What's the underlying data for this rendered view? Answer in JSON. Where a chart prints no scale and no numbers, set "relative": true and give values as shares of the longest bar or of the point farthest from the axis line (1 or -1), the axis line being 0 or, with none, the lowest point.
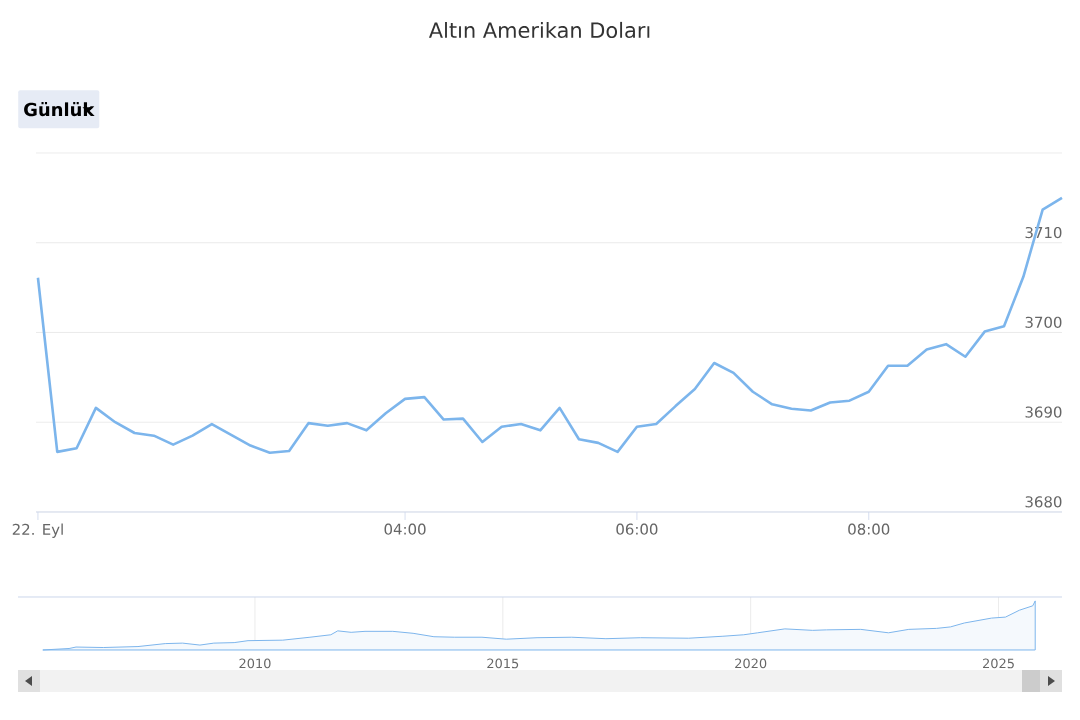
{
  "chart_data": [
    {
      "type": "line",
      "title": "Altın Amerikan Doları",
      "annotations": [
        "Günlük"
      ],
      "categories": [
        "22. Eyl",
        null,
        null,
        null,
        null,
        null,
        null,
        null,
        null,
        null,
        null,
        null,
        null,
        null,
        null,
        null,
        null,
        null,
        null,
        "04:00",
        null,
        null,
        null,
        null,
        null,
        null,
        null,
        null,
        null,
        null,
        null,
        "06:00",
        null,
        null,
        null,
        null,
        null,
        null,
        null,
        null,
        null,
        null,
        null,
        "08:00",
        null,
        null,
        null,
        null,
        null,
        null,
        null,
        null,
        null,
        null
      ],
      "values": [
        3706.1,
        3686.7,
        3687.1,
        3691.6,
        3690.0,
        3688.8,
        3688.5,
        3687.5,
        3688.5,
        3689.8,
        3688.6,
        3687.4,
        3686.6,
        3686.8,
        3689.9,
        3689.6,
        3689.9,
        3689.1,
        3691.0,
        3692.6,
        3692.8,
        3690.3,
        3690.4,
        3687.8,
        3689.5,
        3689.8,
        3689.1,
        3691.6,
        3688.1,
        3687.7,
        3686.7,
        3689.5,
        3689.8,
        3691.8,
        3693.7,
        3696.6,
        3695.5,
        3693.4,
        3692.0,
        3691.5,
        3691.3,
        3692.2,
        3692.4,
        3693.4,
        3696.3,
        3696.3,
        3698.1,
        3698.7,
        3697.3,
        3700.1,
        3700.7,
        3706.2,
        3713.7,
        3715.0
      ],
      "color": "#7cb5ec",
      "ylim": [
        3680,
        3720
      ],
      "yticks": [
        3680,
        3690,
        3700,
        3710,
        {
          "value": 3720,
          "label": null
        }
      ],
      "grid": "y"
    },
    {
      "type": "area",
      "relative": true,
      "x": [
        2005.72,
        2006.25,
        2006.39,
        2006.94,
        2007.64,
        2008.19,
        2008.54,
        2008.89,
        2009.17,
        2009.58,
        2009.86,
        2010.56,
        2011.11,
        2011.53,
        2011.67,
        2011.94,
        2012.22,
        2012.78,
        2013.19,
        2013.61,
        2014.03,
        2014.58,
        2015.07,
        2015.69,
        2016.39,
        2017.08,
        2017.78,
        2018.75,
        2019.44,
        2019.86,
        2020.14,
        2020.69,
        2021.25,
        2021.53,
        2022.22,
        2022.78,
        2023.19,
        2023.75,
        2024.03,
        2024.31,
        2024.86,
        2025.14,
        2025.42,
        2025.69,
        2025.74
      ],
      "values": [
        0,
        0.03,
        0.06,
        0.05,
        0.07,
        0.13,
        0.14,
        0.1,
        0.14,
        0.15,
        0.19,
        0.2,
        0.26,
        0.31,
        0.39,
        0.36,
        0.38,
        0.38,
        0.34,
        0.27,
        0.26,
        0.26,
        0.22,
        0.25,
        0.26,
        0.23,
        0.25,
        0.24,
        0.28,
        0.31,
        0.35,
        0.43,
        0.4,
        0.41,
        0.42,
        0.35,
        0.42,
        0.44,
        0.47,
        0.55,
        0.65,
        0.67,
        0.81,
        0.9,
        1.0
      ],
      "color": "#7cb5ec",
      "xlim": [
        2005.22,
        2026.28
      ],
      "xticks": [
        2010,
        2015,
        2020,
        2025
      ],
      "grid": "x"
    }
  ]
}
